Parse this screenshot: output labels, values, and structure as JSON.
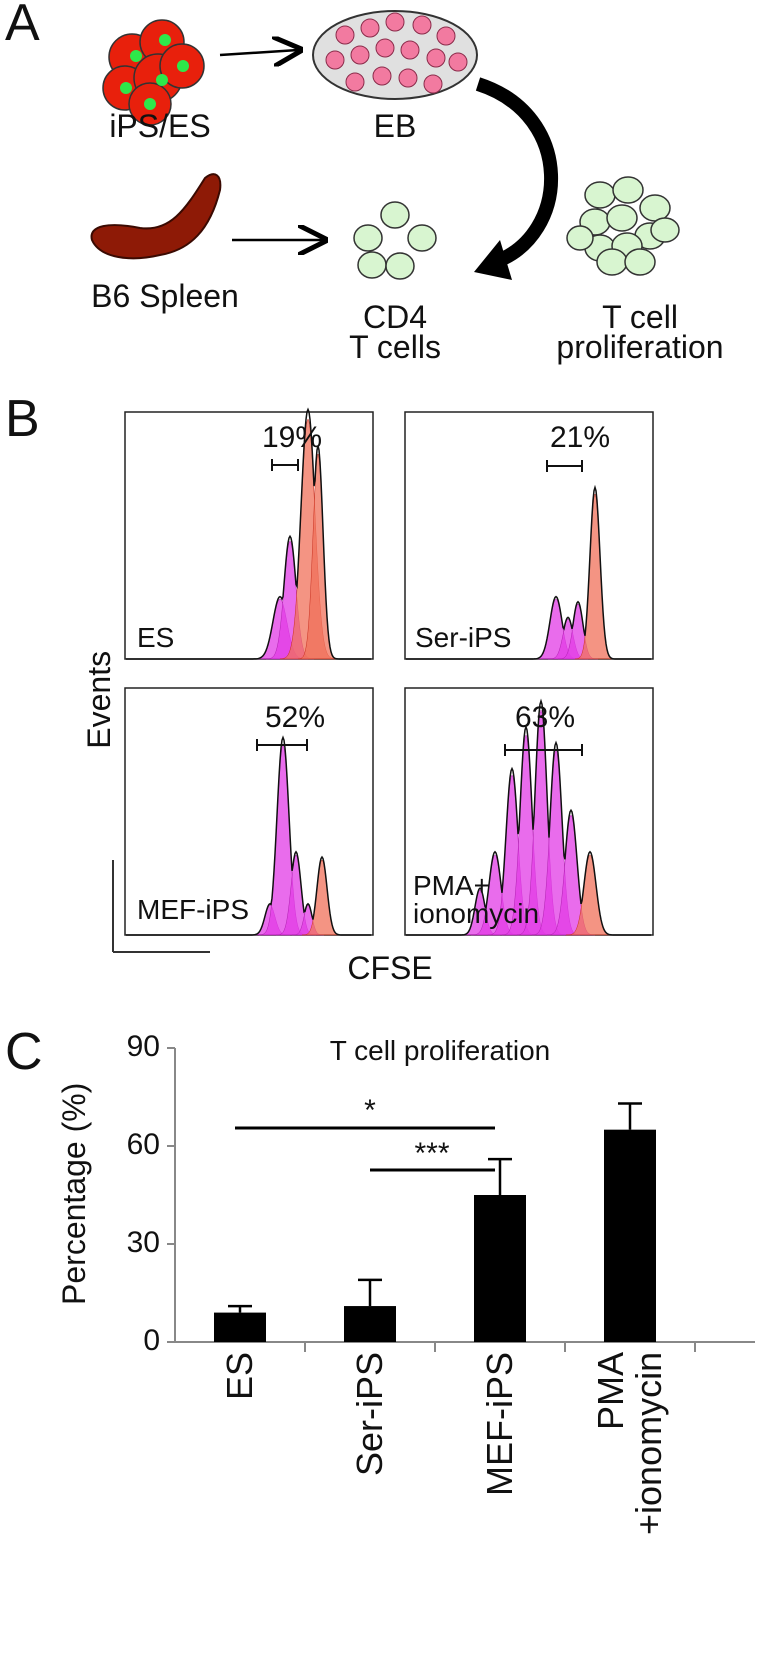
{
  "panel_a": {
    "label": "A",
    "nodes": [
      {
        "label": "iPS/ES"
      },
      {
        "label": "EB"
      },
      {
        "label": "B6 Spleen"
      },
      {
        "label": "CD4\nT cells"
      },
      {
        "label": "T cell\nproliferation"
      }
    ]
  },
  "panel_b": {
    "label": "B",
    "y_label": "Events",
    "x_label": "CFSE",
    "plots": [
      {
        "label": "ES",
        "gate": "19%"
      },
      {
        "label": "Ser-iPS",
        "gate": "21%"
      },
      {
        "label": "MEF-iPS",
        "gate": "52%"
      },
      {
        "label": "PMA+\nionomycin",
        "gate": "63%"
      }
    ]
  },
  "chart_data": {
    "type": "bar",
    "panel_label": "C",
    "title": "T cell proliferation",
    "y_label": "Percentage (%)",
    "categories": [
      "ES",
      "Ser-iPS",
      "MEF-iPS",
      "PMA\n+ionomycin"
    ],
    "values": [
      9,
      11,
      45,
      65
    ],
    "errors": [
      2,
      8,
      11,
      8
    ],
    "color": "#000000",
    "ylim": [
      0,
      90
    ],
    "yticks": [
      0,
      30,
      60,
      90
    ],
    "annotations": [
      "*",
      "***"
    ]
  }
}
